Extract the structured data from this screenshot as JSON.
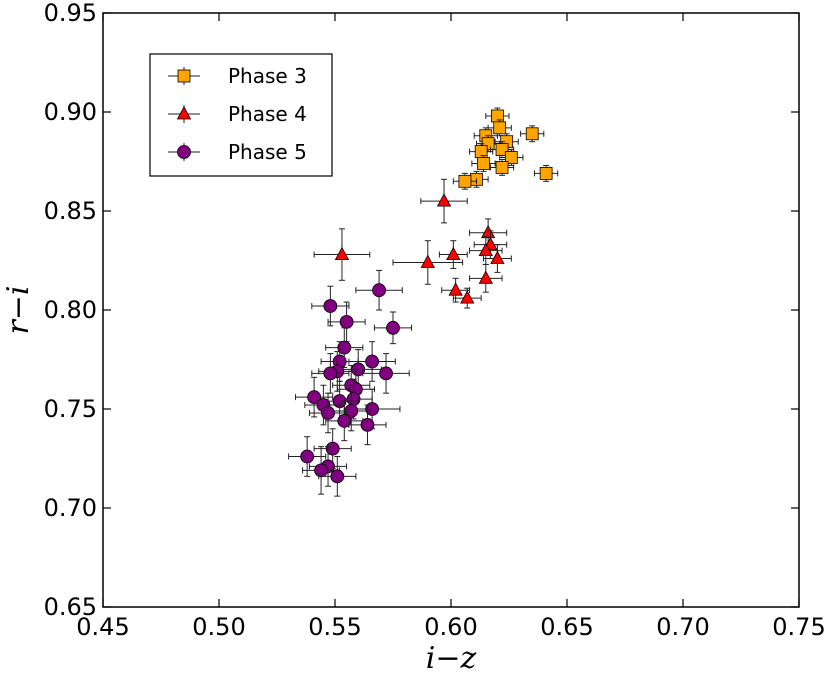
{
  "chart_data": {
    "type": "scatter",
    "title": "",
    "xlabel": "i−z",
    "ylabel": "r−i",
    "xlim": [
      0.45,
      0.75
    ],
    "ylim": [
      0.65,
      0.95
    ],
    "xticks": [
      0.45,
      0.5,
      0.55,
      0.6,
      0.65,
      0.7,
      0.75
    ],
    "yticks": [
      0.65,
      0.7,
      0.75,
      0.8,
      0.85,
      0.9,
      0.95
    ],
    "xtick_labels": [
      "0.45",
      "0.50",
      "0.55",
      "0.60",
      "0.65",
      "0.70",
      "0.75"
    ],
    "ytick_labels": [
      "0.65",
      "0.70",
      "0.75",
      "0.80",
      "0.85",
      "0.90",
      "0.95"
    ],
    "grid": false,
    "legend_position": "top-left",
    "series": [
      {
        "name": "Phase 3",
        "marker": "square",
        "color": "#FFA500",
        "points": [
          {
            "x": 0.62,
            "y": 0.898,
            "xerr": 0.005,
            "yerr": 0.004
          },
          {
            "x": 0.621,
            "y": 0.892,
            "xerr": 0.005,
            "yerr": 0.004
          },
          {
            "x": 0.635,
            "y": 0.889,
            "xerr": 0.005,
            "yerr": 0.004
          },
          {
            "x": 0.615,
            "y": 0.888,
            "xerr": 0.005,
            "yerr": 0.004
          },
          {
            "x": 0.624,
            "y": 0.885,
            "xerr": 0.005,
            "yerr": 0.004
          },
          {
            "x": 0.616,
            "y": 0.884,
            "xerr": 0.005,
            "yerr": 0.004
          },
          {
            "x": 0.613,
            "y": 0.88,
            "xerr": 0.005,
            "yerr": 0.004
          },
          {
            "x": 0.622,
            "y": 0.881,
            "xerr": 0.005,
            "yerr": 0.004
          },
          {
            "x": 0.626,
            "y": 0.877,
            "xerr": 0.005,
            "yerr": 0.004
          },
          {
            "x": 0.614,
            "y": 0.874,
            "xerr": 0.005,
            "yerr": 0.004
          },
          {
            "x": 0.622,
            "y": 0.872,
            "xerr": 0.005,
            "yerr": 0.004
          },
          {
            "x": 0.641,
            "y": 0.869,
            "xerr": 0.005,
            "yerr": 0.004
          },
          {
            "x": 0.611,
            "y": 0.866,
            "xerr": 0.005,
            "yerr": 0.004
          },
          {
            "x": 0.606,
            "y": 0.865,
            "xerr": 0.005,
            "yerr": 0.004
          }
        ]
      },
      {
        "name": "Phase 4",
        "marker": "triangle",
        "color": "#FF0000",
        "points": [
          {
            "x": 0.597,
            "y": 0.855,
            "xerr": 0.01,
            "yerr": 0.011
          },
          {
            "x": 0.616,
            "y": 0.839,
            "xerr": 0.008,
            "yerr": 0.007
          },
          {
            "x": 0.617,
            "y": 0.833,
            "xerr": 0.007,
            "yerr": 0.007
          },
          {
            "x": 0.615,
            "y": 0.83,
            "xerr": 0.007,
            "yerr": 0.007
          },
          {
            "x": 0.553,
            "y": 0.828,
            "xerr": 0.012,
            "yerr": 0.013
          },
          {
            "x": 0.601,
            "y": 0.828,
            "xerr": 0.006,
            "yerr": 0.007
          },
          {
            "x": 0.62,
            "y": 0.826,
            "xerr": 0.006,
            "yerr": 0.007
          },
          {
            "x": 0.59,
            "y": 0.824,
            "xerr": 0.015,
            "yerr": 0.011
          },
          {
            "x": 0.615,
            "y": 0.816,
            "xerr": 0.007,
            "yerr": 0.007
          },
          {
            "x": 0.602,
            "y": 0.81,
            "xerr": 0.006,
            "yerr": 0.006
          },
          {
            "x": 0.607,
            "y": 0.806,
            "xerr": 0.006,
            "yerr": 0.005
          }
        ]
      },
      {
        "name": "Phase 5",
        "marker": "circle",
        "color": "#800080",
        "points": [
          {
            "x": 0.569,
            "y": 0.81,
            "xerr": 0.01,
            "yerr": 0.01
          },
          {
            "x": 0.548,
            "y": 0.802,
            "xerr": 0.008,
            "yerr": 0.01
          },
          {
            "x": 0.555,
            "y": 0.794,
            "xerr": 0.008,
            "yerr": 0.01
          },
          {
            "x": 0.575,
            "y": 0.791,
            "xerr": 0.008,
            "yerr": 0.008
          },
          {
            "x": 0.554,
            "y": 0.781,
            "xerr": 0.008,
            "yerr": 0.01
          },
          {
            "x": 0.566,
            "y": 0.774,
            "xerr": 0.01,
            "yerr": 0.01
          },
          {
            "x": 0.552,
            "y": 0.774,
            "xerr": 0.008,
            "yerr": 0.01
          },
          {
            "x": 0.56,
            "y": 0.77,
            "xerr": 0.01,
            "yerr": 0.01
          },
          {
            "x": 0.551,
            "y": 0.769,
            "xerr": 0.008,
            "yerr": 0.01
          },
          {
            "x": 0.572,
            "y": 0.768,
            "xerr": 0.01,
            "yerr": 0.01
          },
          {
            "x": 0.548,
            "y": 0.768,
            "xerr": 0.008,
            "yerr": 0.01
          },
          {
            "x": 0.557,
            "y": 0.762,
            "xerr": 0.008,
            "yerr": 0.01
          },
          {
            "x": 0.559,
            "y": 0.76,
            "xerr": 0.008,
            "yerr": 0.01
          },
          {
            "x": 0.541,
            "y": 0.756,
            "xerr": 0.008,
            "yerr": 0.01
          },
          {
            "x": 0.558,
            "y": 0.755,
            "xerr": 0.008,
            "yerr": 0.01
          },
          {
            "x": 0.552,
            "y": 0.754,
            "xerr": 0.008,
            "yerr": 0.01
          },
          {
            "x": 0.545,
            "y": 0.752,
            "xerr": 0.008,
            "yerr": 0.01
          },
          {
            "x": 0.566,
            "y": 0.75,
            "xerr": 0.012,
            "yerr": 0.01
          },
          {
            "x": 0.557,
            "y": 0.749,
            "xerr": 0.008,
            "yerr": 0.01
          },
          {
            "x": 0.547,
            "y": 0.748,
            "xerr": 0.008,
            "yerr": 0.01
          },
          {
            "x": 0.554,
            "y": 0.744,
            "xerr": 0.008,
            "yerr": 0.01
          },
          {
            "x": 0.564,
            "y": 0.742,
            "xerr": 0.008,
            "yerr": 0.01
          },
          {
            "x": 0.549,
            "y": 0.73,
            "xerr": 0.008,
            "yerr": 0.01
          },
          {
            "x": 0.538,
            "y": 0.726,
            "xerr": 0.008,
            "yerr": 0.01
          },
          {
            "x": 0.547,
            "y": 0.721,
            "xerr": 0.008,
            "yerr": 0.01
          },
          {
            "x": 0.544,
            "y": 0.719,
            "xerr": 0.008,
            "yerr": 0.012
          },
          {
            "x": 0.551,
            "y": 0.716,
            "xerr": 0.008,
            "yerr": 0.01
          }
        ]
      }
    ]
  }
}
